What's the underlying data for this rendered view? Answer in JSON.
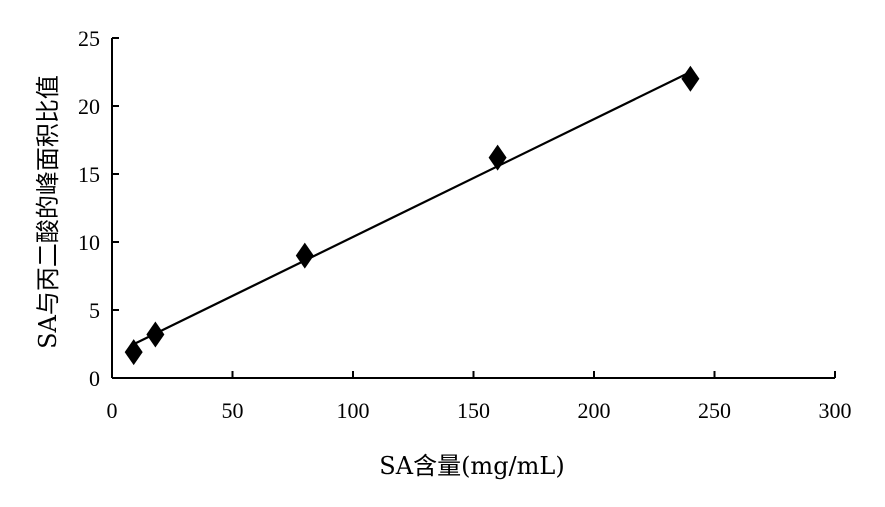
{
  "chart_data": {
    "type": "scatter",
    "xlabel": "SA含量(mg/mL)",
    "ylabel": "SA与丙二酸的峰面积比值",
    "xlim": [
      0,
      300
    ],
    "ylim": [
      0,
      25
    ],
    "x_ticks": [
      0,
      50,
      100,
      150,
      200,
      250,
      300
    ],
    "y_ticks": [
      0,
      5,
      10,
      15,
      20,
      25
    ],
    "grid": false,
    "marker": "diamond",
    "series": [
      {
        "x": [
          9,
          18,
          80,
          160,
          240
        ],
        "y": [
          1.9,
          3.2,
          9.0,
          16.2,
          22.0
        ]
      }
    ],
    "trendline": {
      "x": [
        8,
        240
      ],
      "y": [
        2.4,
        22.5
      ]
    },
    "colors": {
      "marker": "#000000",
      "line": "#000000",
      "axis": "#000000"
    }
  }
}
